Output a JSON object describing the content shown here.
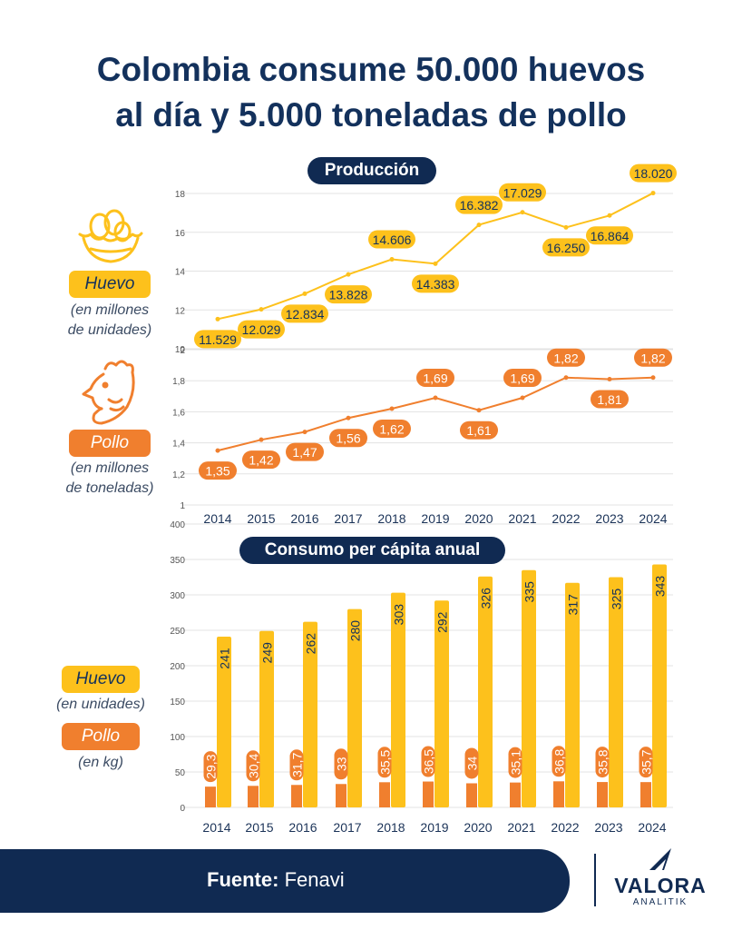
{
  "title_line1": "Colombia consume 50.000 huevos",
  "title_line2": "al día y 5.000 toneladas de pollo",
  "colors": {
    "huevo": "#fdc11c",
    "pollo": "#f07f2e",
    "navy": "#102a52"
  },
  "produccion": {
    "label": "Producción",
    "huevo": {
      "label": "Huevo",
      "unit_note_1": "(en millones",
      "unit_note_2": "de unidades)",
      "icon": "egg-nest-icon"
    },
    "pollo": {
      "label": "Pollo",
      "unit_note_1": "(en millones",
      "unit_note_2": "de toneladas)",
      "icon": "chicken-head-icon"
    }
  },
  "consumo": {
    "label": "Consumo per cápita anual",
    "huevo": {
      "label": "Huevo",
      "unit_note": "(en unidades)"
    },
    "pollo": {
      "label": "Pollo",
      "unit_note": "(en kg)"
    }
  },
  "footer": {
    "fuente_label": "Fuente:",
    "fuente_value": "Fenavi",
    "brand": "VALORA",
    "brand_sub": "ANALITIK",
    "logo_icon": "valora-wing-icon"
  },
  "chart_data": [
    {
      "type": "line",
      "name": "produccion-huevo",
      "x": [
        2014,
        2015,
        2016,
        2017,
        2018,
        2019,
        2020,
        2021,
        2022,
        2023,
        2024
      ],
      "series": [
        {
          "values": [
            11.529,
            12.029,
            12.834,
            13.828,
            14.606,
            14.383,
            16.382,
            17.029,
            16.25,
            16.864,
            18.02
          ]
        }
      ],
      "data_labels": [
        "11.529",
        "12.029",
        "12.834",
        "13.828",
        "14.606",
        "14.383",
        "16.382",
        "17.029",
        "16.250",
        "16.864",
        "18.020"
      ],
      "ylim": [
        10,
        18
      ],
      "yticks": [
        "10",
        "12",
        "14",
        "16",
        "18"
      ],
      "grid": true
    },
    {
      "type": "line",
      "name": "produccion-pollo",
      "x": [
        2014,
        2015,
        2016,
        2017,
        2018,
        2019,
        2020,
        2021,
        2022,
        2023,
        2024
      ],
      "series": [
        {
          "values": [
            1.35,
            1.42,
            1.47,
            1.56,
            1.62,
            1.69,
            1.61,
            1.69,
            1.82,
            1.81,
            1.82
          ]
        }
      ],
      "data_labels": [
        "1,35",
        "1,42",
        "1,47",
        "1,56",
        "1,62",
        "1,69",
        "1,61",
        "1,69",
        "1,82",
        "1,81",
        "1,82"
      ],
      "ylim": [
        1,
        2
      ],
      "yticks": [
        "1",
        "1,2",
        "1,4",
        "1,6",
        "1,8",
        "2"
      ],
      "xticks": [
        "2014",
        "2015",
        "2016",
        "2017",
        "2018",
        "2019",
        "2020",
        "2021",
        "2022",
        "2023",
        "2024"
      ],
      "grid": true
    },
    {
      "type": "bar",
      "name": "consumo-per-capita",
      "categories": [
        "2014",
        "2015",
        "2016",
        "2017",
        "2018",
        "2019",
        "2020",
        "2021",
        "2022",
        "2023",
        "2024"
      ],
      "series": [
        {
          "values": [
            241,
            249,
            262,
            280,
            303,
            292,
            326,
            335,
            317,
            325,
            343
          ],
          "data_labels": [
            "241",
            "249",
            "262",
            "280",
            "303",
            "292",
            "326",
            "335",
            "317",
            "325",
            "343"
          ]
        },
        {
          "values": [
            29.3,
            30.4,
            31.7,
            33,
            35.5,
            36.5,
            34,
            35.1,
            36.8,
            35.8,
            35.7
          ],
          "data_labels": [
            "29,3",
            "30,4",
            "31,7",
            "33",
            "35,5",
            "36,5",
            "34",
            "35,1",
            "36,8",
            "35,8",
            "35,7"
          ]
        }
      ],
      "ylim": [
        0,
        400
      ],
      "yticks": [
        "0",
        "50",
        "100",
        "150",
        "200",
        "250",
        "300",
        "350",
        "400"
      ],
      "grid": true
    }
  ]
}
